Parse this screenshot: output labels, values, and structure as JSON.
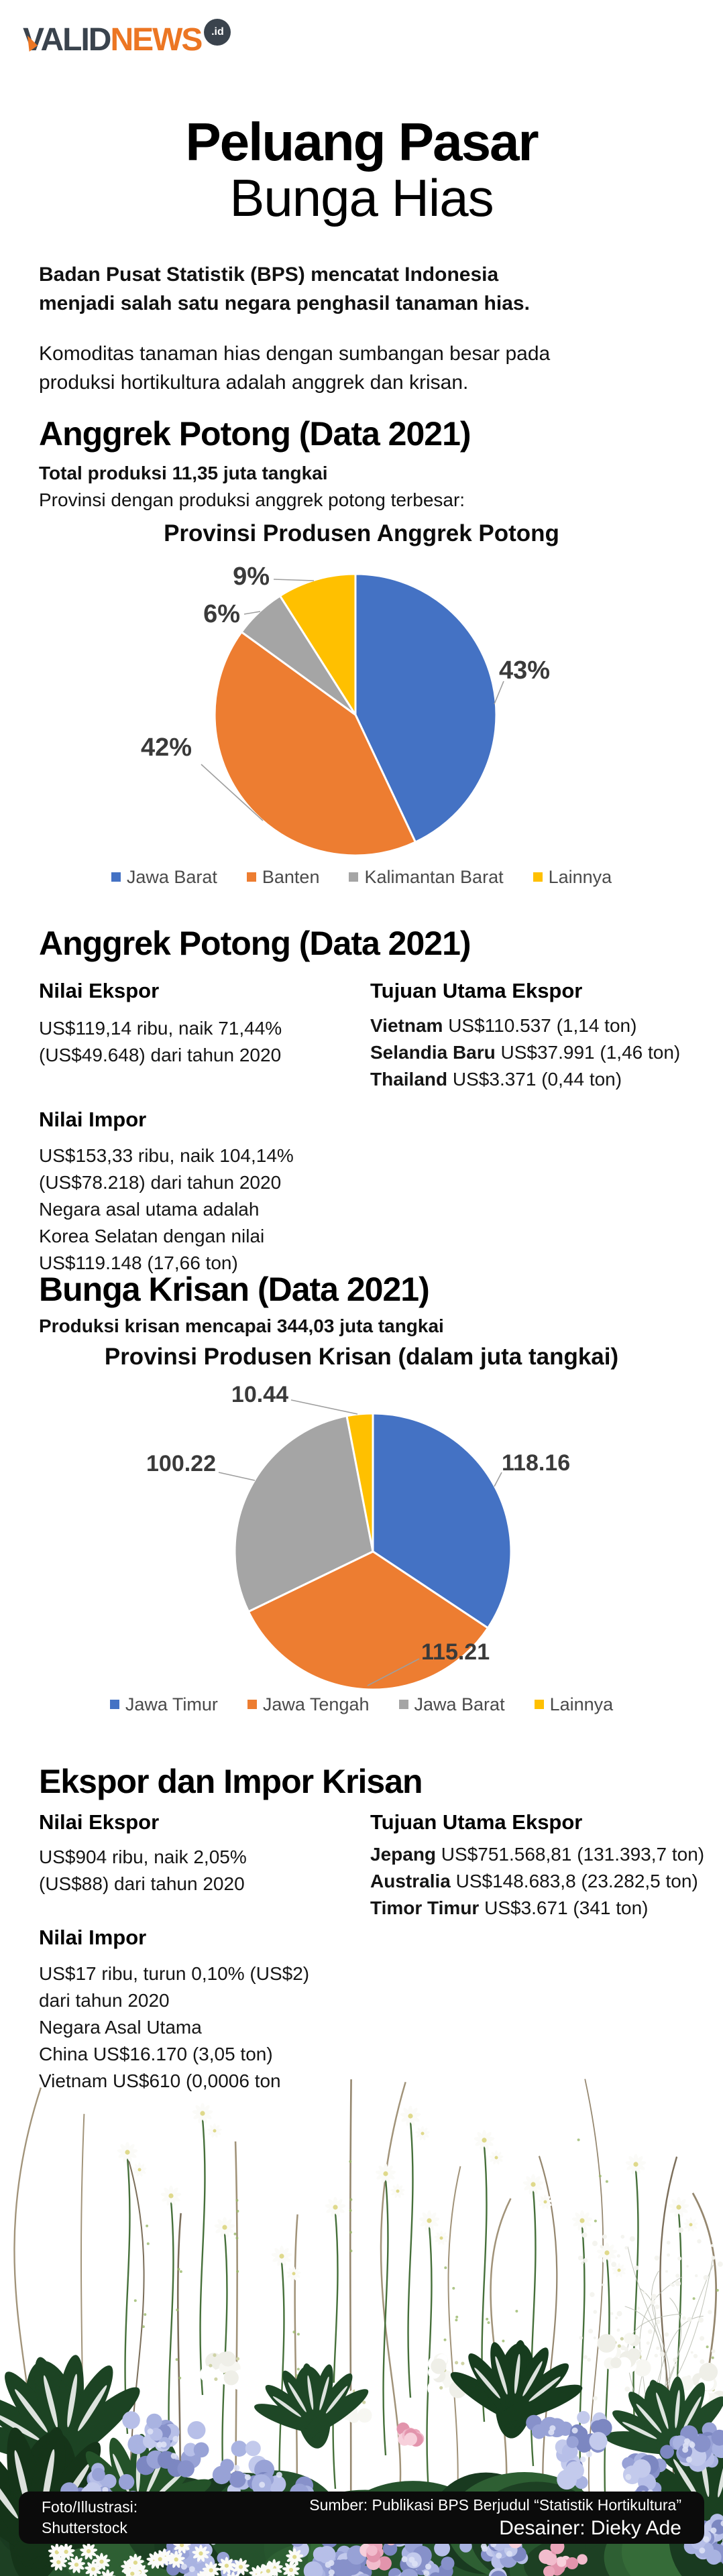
{
  "colors": {
    "brand_dark": "#3a434d",
    "brand_orange": "#ec7623",
    "pie_blue": "#4472C4",
    "pie_orange": "#ED7D31",
    "pie_gray": "#A5A5A5",
    "pie_yellow": "#FFC000",
    "credit_bar": "#0b0b0b"
  },
  "logo": {
    "valid": "VALID",
    "news": "NEWS",
    "badge": ".id"
  },
  "title": {
    "line1": "Peluang Pasar",
    "line2": "Bunga Hias"
  },
  "intro": {
    "bold": "Badan Pusat Statistik (BPS) mencatat Indonesia\nmenjadi salah satu negara penghasil tanaman hias.",
    "regular": "Komoditas tanaman hias dengan sumbangan besar pada\nproduksi hortikultura adalah anggrek dan krisan."
  },
  "anggrek_produksi": {
    "heading": "Anggrek Potong (Data 2021)",
    "total_bold": "Total produksi 11,35 juta tangkai",
    "subtitle": "Provinsi dengan produksi anggrek potong terbesar:"
  },
  "chart_data": [
    {
      "type": "pie",
      "title": "Provinsi Produsen Anggrek Potong",
      "unit": "percent share of cut-orchid production",
      "legend_position": "bottom",
      "slices": [
        {
          "label": "Jawa Barat",
          "value": 43,
          "display": "43%",
          "color": "#4472C4"
        },
        {
          "label": "Banten",
          "value": 42,
          "display": "42%",
          "color": "#ED7D31"
        },
        {
          "label": "Kalimantan Barat",
          "value": 6,
          "display": "6%",
          "color": "#A5A5A5"
        },
        {
          "label": "Lainnya",
          "value": 9,
          "display": "9%",
          "color": "#FFC000"
        }
      ]
    },
    {
      "type": "pie",
      "title": "Provinsi Produsen Krisan (dalam juta tangkai)",
      "unit": "juta tangkai",
      "legend_position": "bottom",
      "slices": [
        {
          "label": "Jawa Timur",
          "value": 118.16,
          "display": "118.16",
          "color": "#4472C4"
        },
        {
          "label": "Jawa Tengah",
          "value": 115.21,
          "display": "115.21",
          "color": "#ED7D31"
        },
        {
          "label": "Jawa Barat",
          "value": 100.22,
          "display": "100.22",
          "color": "#A5A5A5"
        },
        {
          "label": "Lainnya",
          "value": 10.44,
          "display": "10.44",
          "color": "#FFC000"
        }
      ]
    }
  ],
  "anggrek_trade": {
    "heading": "Anggrek Potong (Data 2021)",
    "ekspor_title": "Nilai Ekspor",
    "ekspor_lines": "US$119,14 ribu, naik 71,44%\n(US$49.648) dari tahun 2020",
    "tujuan_title": "Tujuan Utama Ekspor",
    "tujuan": [
      {
        "country": "Vietnam",
        "value": "US$110.537 (1,14 ton)"
      },
      {
        "country": "Selandia Baru",
        "value": " US$37.991 (1,46 ton)"
      },
      {
        "country": "Thailand",
        "value": "US$3.371 (0,44 ton)"
      }
    ],
    "impor_title": "Nilai Impor",
    "impor_lines": "US$153,33 ribu, naik 104,14%\n(US$78.218) dari tahun 2020\nNegara asal utama adalah\nKorea Selatan dengan nilai\nUS$119.148 (17,66 ton)"
  },
  "krisan": {
    "heading": "Bunga Krisan (Data 2021)",
    "produksi_bold": "Produksi krisan mencapai 344,03 juta tangkai"
  },
  "krisan_trade": {
    "heading": "Ekspor dan Impor Krisan",
    "ekspor_title": "Nilai Ekspor",
    "ekspor_lines": "US$904 ribu, naik 2,05%\n(US$88) dari tahun 2020",
    "tujuan_title": "Tujuan Utama Ekspor",
    "tujuan": [
      {
        "country": "Jepang",
        "value": "US$751.568,81 (131.393,7 ton)"
      },
      {
        "country": "Australia",
        "value": "US$148.683,8 (23.282,5 ton)"
      },
      {
        "country": "Timor Timur",
        "value": "US$3.671 (341 ton)"
      }
    ],
    "impor_title": "Nilai Impor",
    "impor_lines": "US$17 ribu, turun 0,10% (US$2)\ndari tahun 2020\nNegara Asal Utama\nChina US$16.170 (3,05 ton)\nVietnam US$610 (0,0006 ton"
  },
  "footer": {
    "credit_left1": "Foto/Illustrasi:",
    "credit_left2": "Shutterstock",
    "source": "Sumber: Publikasi BPS Berjudul “Statistik Hortikultura”",
    "designer": "Desainer: Dieky Ade"
  }
}
